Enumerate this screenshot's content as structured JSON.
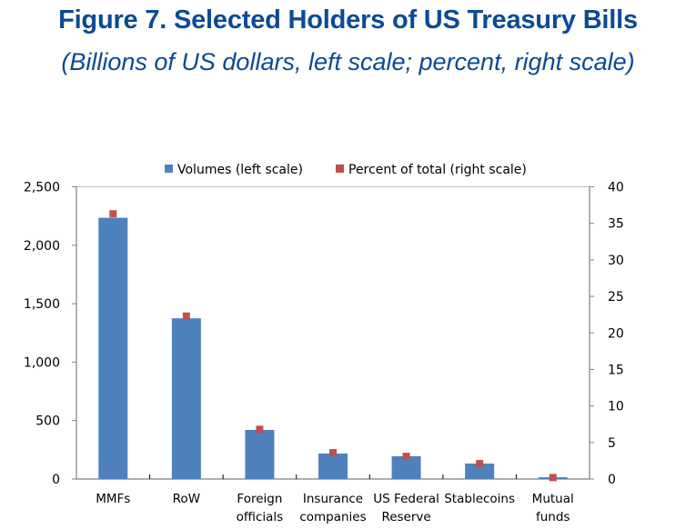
{
  "chart_data": {
    "type": "bar",
    "title": "Figure 7. Selected Holders of US Treasury Bills",
    "subtitle": "(Billions of US dollars, left scale; percent, right scale)",
    "categories": [
      [
        "MMFs"
      ],
      [
        "RoW"
      ],
      [
        "Foreign",
        "officials"
      ],
      [
        "Insurance",
        "companies"
      ],
      [
        "US Federal",
        "Reserve"
      ],
      [
        "Stablecoins"
      ],
      [
        "Mutual",
        "funds"
      ]
    ],
    "series": [
      {
        "name": "Volumes (left scale)",
        "type": "bar",
        "axis": "left",
        "color": "#4f81bd",
        "values": [
          2235,
          1375,
          420,
          218,
          195,
          132,
          15
        ]
      },
      {
        "name": "Percent of total (right scale)",
        "type": "scatter",
        "axis": "right",
        "color": "#c0504d",
        "values": [
          36.3,
          22.3,
          6.8,
          3.6,
          3.1,
          2.1,
          0.2
        ]
      }
    ],
    "left_axis": {
      "ylim": [
        0,
        2500
      ],
      "ticks": [
        0,
        500,
        1000,
        1500,
        2000,
        2500
      ],
      "tick_labels": [
        "0",
        "500",
        "1,000",
        "1,500",
        "2,000",
        "2,500"
      ]
    },
    "right_axis": {
      "ylim": [
        0,
        40
      ],
      "ticks": [
        0,
        5,
        10,
        15,
        20,
        25,
        30,
        35,
        40
      ],
      "tick_labels": [
        "0",
        "5",
        "10",
        "15",
        "20",
        "25",
        "30",
        "35",
        "40"
      ]
    },
    "xlabel": "",
    "ylabel": "",
    "grid": false,
    "legend_position": "top"
  }
}
